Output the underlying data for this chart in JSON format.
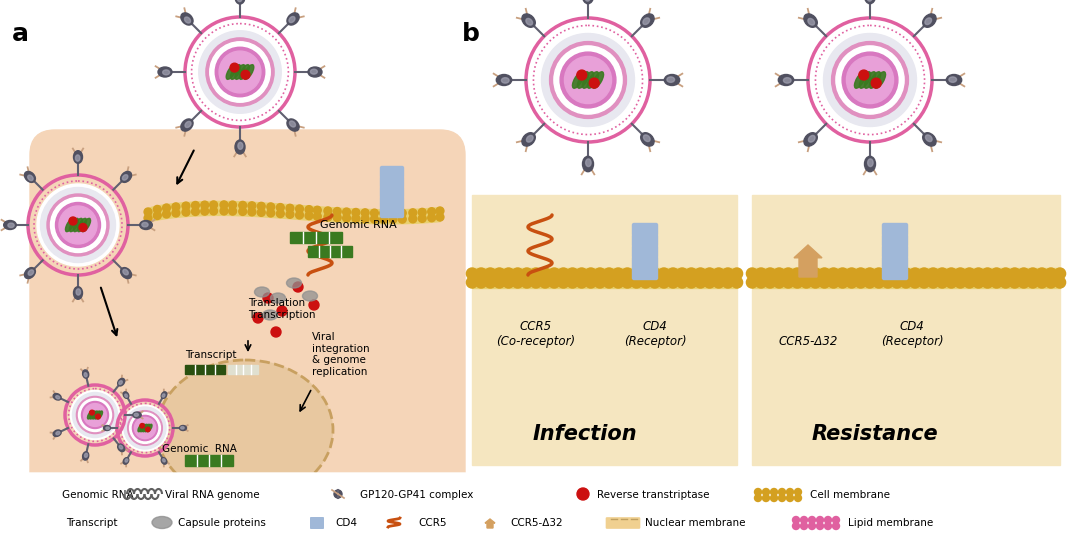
{
  "bg_color": "#ffffff",
  "panel_a_bg": "#f5d5b8",
  "panel_b_bg": "#f5e6c0",
  "legend_border": "#888888",
  "pink_membrane": "#e060a0",
  "gold_membrane": "#d4a020",
  "blue_cd4": "#a0b8d8",
  "ccr5_color": "#c85010",
  "ccr5_32_color": "#d4a060",
  "viral_rna_color": "#505050",
  "green_rna": "#3a7a20",
  "red_dot": "#cc1010",
  "spike_color": "#808090",
  "spike_arm_color": "#c8a080",
  "gray_capsule": "#909090",
  "nucleus_color": "#e8c8a0",
  "nuclear_border": "#c8a060",
  "panel_a_label": "a",
  "panel_b_label": "b",
  "label_fontsize": 18,
  "legend_items_row1": [
    "Genomic RNA",
    "Viral RNA genome",
    "GP120-GP41 complex",
    "Reverse transtriptase",
    "Cell membrane"
  ],
  "legend_items_row2": [
    "Transcript",
    "Capsule proteins",
    "CD4",
    "CCR5",
    "CCR5-Δ32",
    "Nuclear membrane",
    "Lipid membrane"
  ],
  "infection_label": "Infection",
  "resistance_label": "Resistance",
  "ccr5_32_label": "CCR5-Δ32",
  "genomic_rna_label": "Genomic RNA",
  "transcript_label": "Transcript",
  "translation_label": "Translation\nTranscription",
  "viral_int_label": "Viral\nintegration\n& genome\nreplication",
  "genomic_rna2_label": "Genomic  RNA"
}
